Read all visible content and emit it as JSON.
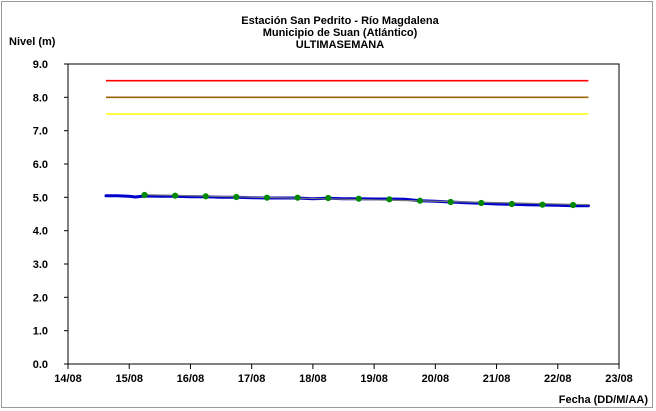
{
  "chart_data": {
    "type": "line",
    "title_lines": [
      "Estación San Pedrito - Río Magdalena",
      "Municipio de Suan (Atlántico)",
      "ULTIMASEMANA"
    ],
    "ylabel": "Nivel (m)",
    "xlabel": "Fecha (DD/M/AA)",
    "ylim": [
      0,
      9
    ],
    "yticks": [
      "0.0",
      "1.0",
      "2.0",
      "3.0",
      "4.0",
      "5.0",
      "6.0",
      "7.0",
      "8.0",
      "9.0"
    ],
    "xlim": [
      0,
      9
    ],
    "xticks": [
      "14/08",
      "15/08",
      "16/08",
      "17/08",
      "18/08",
      "19/08",
      "20/08",
      "21/08",
      "22/08",
      "23/08"
    ],
    "grid": false,
    "thresholds": [
      {
        "value": 8.5,
        "color": "#ff0000",
        "x_start": 0.62,
        "x_end": 8.5
      },
      {
        "value": 8.0,
        "color": "#996600",
        "x_start": 0.62,
        "x_end": 8.5
      },
      {
        "value": 7.5,
        "color": "#ffff00",
        "x_start": 0.62,
        "x_end": 8.5
      }
    ],
    "series": [
      {
        "style": "measured",
        "color": "#0000cc",
        "x": [
          0.62,
          0.8,
          0.9,
          1.0,
          1.1,
          1.25,
          1.5,
          1.75,
          2.0,
          2.25,
          2.5,
          2.75,
          3.0,
          3.25,
          3.5,
          3.75,
          4.0,
          4.25,
          4.5,
          4.75,
          5.0,
          5.25,
          5.5,
          5.75,
          6.0,
          6.25,
          6.5,
          6.75,
          7.0,
          7.25,
          7.5,
          7.75,
          8.0,
          8.25,
          8.5
        ],
        "y": [
          5.05,
          5.05,
          5.04,
          5.03,
          5.01,
          5.04,
          5.03,
          5.03,
          5.02,
          5.02,
          5.0,
          5.0,
          4.99,
          4.98,
          4.98,
          4.98,
          4.96,
          4.97,
          4.96,
          4.96,
          4.95,
          4.95,
          4.94,
          4.9,
          4.88,
          4.86,
          4.84,
          4.82,
          4.8,
          4.79,
          4.78,
          4.77,
          4.76,
          4.75,
          4.75
        ]
      },
      {
        "style": "forecast",
        "color": "#777777",
        "x": [
          1.25,
          8.5
        ],
        "y": [
          5.08,
          4.78
        ]
      },
      {
        "style": "markers",
        "color": "#008800",
        "x": [
          1.25,
          1.75,
          2.25,
          2.75,
          3.25,
          3.75,
          4.25,
          4.75,
          5.25,
          5.75,
          6.25,
          6.75,
          7.25,
          7.75,
          8.25
        ],
        "y": [
          5.07,
          5.05,
          5.03,
          5.01,
          4.99,
          4.99,
          4.98,
          4.96,
          4.94,
          4.9,
          4.86,
          4.83,
          4.8,
          4.78,
          4.77
        ]
      }
    ]
  },
  "colors": {
    "background": "#ffffff",
    "frame": "#9a9a9a",
    "axis": "#808080"
  }
}
